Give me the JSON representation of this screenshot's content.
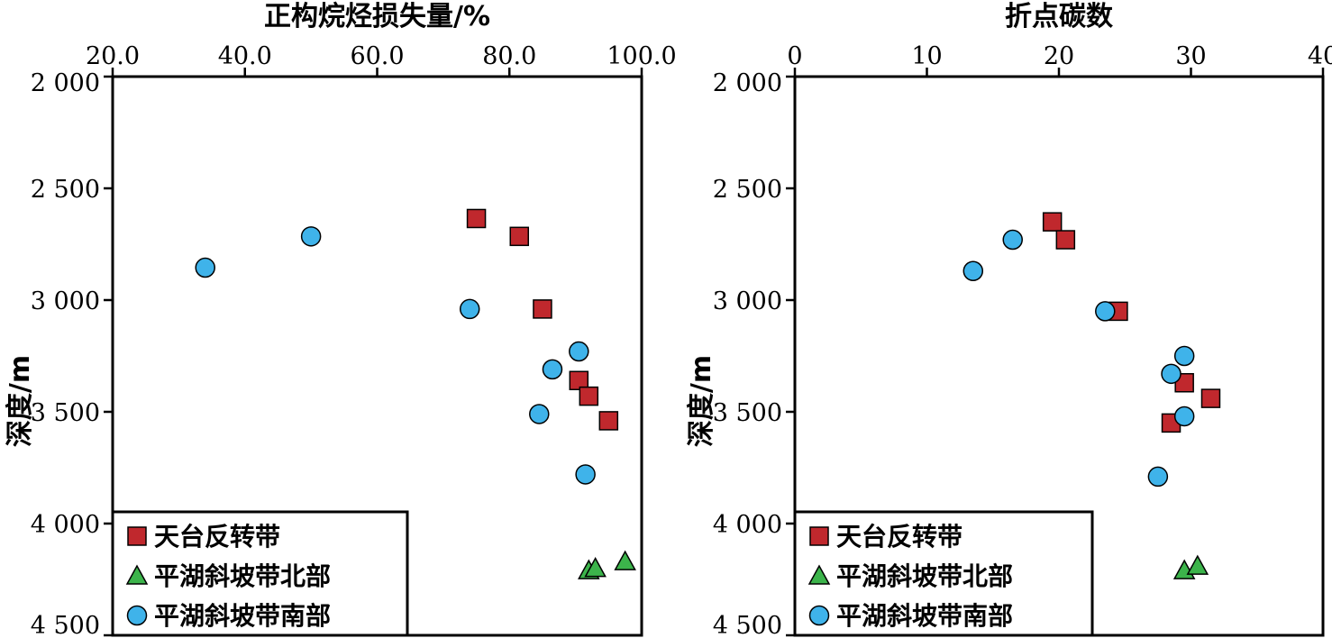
{
  "chart_data": [
    {
      "type": "scatter",
      "xlabel": "正构烷烃损失量/%",
      "ylabel": "深度/m",
      "x_axis_position": "top",
      "y_inverted": true,
      "xlim": [
        20.0,
        100.0
      ],
      "ylim": [
        2000,
        4500
      ],
      "x_ticks": [
        20.0,
        40.0,
        60.0,
        80.0,
        100.0
      ],
      "x_tick_labels": [
        "20.0",
        "40.0",
        "60.0",
        "80.0",
        "100.0"
      ],
      "y_ticks": [
        2000,
        2500,
        3000,
        3500,
        4000,
        4500
      ],
      "y_tick_labels": [
        "2 000",
        "2 500",
        "3 000",
        "3 500",
        "4 000",
        "4 500"
      ],
      "legend_placement": "bottom-left",
      "series": [
        {
          "name": "天台反转带",
          "marker": "square",
          "color": "#c0282d",
          "points": [
            [
              75.0,
              2635
            ],
            [
              81.5,
              2715
            ],
            [
              85.0,
              3040
            ],
            [
              90.5,
              3360
            ],
            [
              92.0,
              3430
            ],
            [
              95.0,
              3540
            ]
          ]
        },
        {
          "name": "平湖斜坡带北部",
          "marker": "triangle",
          "color": "#3cb44b",
          "points": [
            [
              92.0,
              4210
            ],
            [
              93.0,
              4200
            ],
            [
              97.5,
              4170
            ]
          ]
        },
        {
          "name": "平湖斜坡带南部",
          "marker": "circle",
          "color": "#3fb3ea",
          "points": [
            [
              34.0,
              2855
            ],
            [
              50.0,
              2715
            ],
            [
              74.0,
              3040
            ],
            [
              90.5,
              3230
            ],
            [
              86.5,
              3310
            ],
            [
              84.5,
              3510
            ],
            [
              91.5,
              3780
            ]
          ]
        }
      ]
    },
    {
      "type": "scatter",
      "xlabel": "折点碳数",
      "ylabel": "深度/m",
      "x_axis_position": "top",
      "y_inverted": true,
      "xlim": [
        0,
        40
      ],
      "ylim": [
        2000,
        4500
      ],
      "x_ticks": [
        0,
        10,
        20,
        30,
        40
      ],
      "x_tick_labels": [
        "0",
        "10",
        "20",
        "30",
        "40"
      ],
      "y_ticks": [
        2000,
        2500,
        3000,
        3500,
        4000,
        4500
      ],
      "y_tick_labels": [
        "2 000",
        "2 500",
        "3 000",
        "3 500",
        "4 000",
        "4 500"
      ],
      "legend_placement": "bottom-left",
      "series": [
        {
          "name": "天台反转带",
          "marker": "square",
          "color": "#c0282d",
          "points": [
            [
              19.5,
              2650
            ],
            [
              20.5,
              2730
            ],
            [
              24.5,
              3050
            ],
            [
              29.5,
              3370
            ],
            [
              31.5,
              3440
            ],
            [
              28.5,
              3550
            ]
          ]
        },
        {
          "name": "平湖斜坡带北部",
          "marker": "triangle",
          "color": "#3cb44b",
          "points": [
            [
              29.5,
              4210
            ],
            [
              30.5,
              4190
            ]
          ]
        },
        {
          "name": "平湖斜坡带南部",
          "marker": "circle",
          "color": "#3fb3ea",
          "points": [
            [
              16.5,
              2730
            ],
            [
              13.5,
              2870
            ],
            [
              23.5,
              3050
            ],
            [
              29.5,
              3250
            ],
            [
              28.5,
              3330
            ],
            [
              29.5,
              3520
            ],
            [
              27.5,
              3790
            ]
          ]
        }
      ]
    }
  ]
}
